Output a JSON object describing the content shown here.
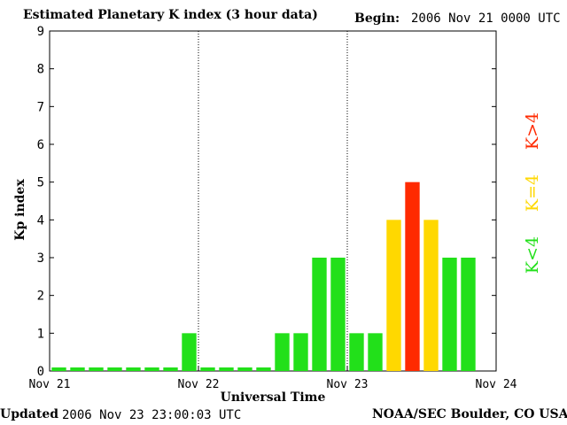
{
  "header": {
    "title": "Estimated Planetary K index (3 hour data)",
    "begin_label": "Begin:",
    "begin_value": "2006 Nov 21 0000 UTC"
  },
  "footer": {
    "updated_label": "Updated",
    "updated_value": "2006 Nov 23 23:00:03 UTC",
    "source": "NOAA/SEC Boulder, CO USA"
  },
  "legend": [
    {
      "label": "K>4",
      "color": "#ff2a00"
    },
    {
      "label": "K=4",
      "color": "#ffd800"
    },
    {
      "label": "K<4",
      "color": "#22e01a"
    }
  ],
  "chart_data": {
    "type": "bar",
    "title": "Estimated Planetary K index (3 hour data)",
    "xlabel": "Universal Time",
    "ylabel": "Kp index",
    "ylim": [
      0,
      9
    ],
    "yticks": [
      0,
      1,
      2,
      3,
      4,
      5,
      6,
      7,
      8,
      9
    ],
    "xticks": [
      "Nov 21",
      "Nov 22",
      "Nov 23",
      "Nov 24"
    ],
    "bins_per_day": 8,
    "values": [
      0,
      0,
      0,
      0,
      0,
      0,
      0,
      1,
      0,
      0,
      0,
      0,
      1,
      1,
      3,
      3,
      1,
      1,
      4,
      5,
      4,
      3,
      3
    ],
    "colors": {
      "below4": "#22e01a",
      "equal4": "#ffd800",
      "above4": "#ff2a00"
    },
    "day_separators": true
  }
}
